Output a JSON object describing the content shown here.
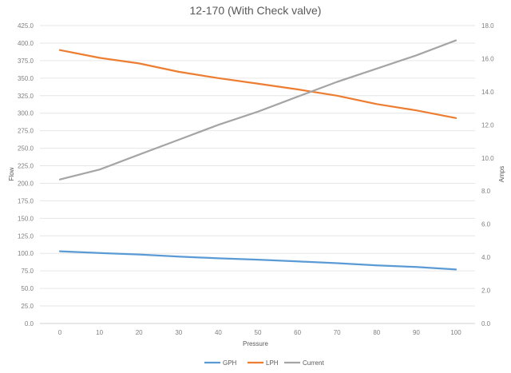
{
  "chart_data": {
    "type": "line",
    "title": "12-170 (With Check valve)",
    "xlabel": "Pressure",
    "ylabel": "Flow",
    "y2label": "Amps",
    "x": [
      0,
      10,
      20,
      30,
      40,
      50,
      60,
      70,
      80,
      90,
      100
    ],
    "x_ticks": [
      "0",
      "10",
      "20",
      "30",
      "40",
      "50",
      "60",
      "70",
      "80",
      "90",
      "100"
    ],
    "ylim": [
      0,
      425
    ],
    "y_ticks": [
      "0.0",
      "25.0",
      "50.0",
      "75.0",
      "100.0",
      "125.0",
      "150.0",
      "175.0",
      "200.0",
      "225.0",
      "250.0",
      "275.0",
      "300.0",
      "325.0",
      "350.0",
      "375.0",
      "400.0",
      "425.0"
    ],
    "y2lim": [
      0,
      18
    ],
    "y2_ticks": [
      "0.0",
      "2.0",
      "4.0",
      "6.0",
      "8.0",
      "10.0",
      "12.0",
      "14.0",
      "16.0",
      "18.0"
    ],
    "grid": true,
    "legend_position": "bottom",
    "series": [
      {
        "name": "GPH",
        "axis": "left",
        "color": "#5b9bd5",
        "values": [
          103,
          100.5,
          98.5,
          95.5,
          93,
          91,
          88.5,
          86,
          83,
          80.5,
          77
        ]
      },
      {
        "name": "LPH",
        "axis": "left",
        "color": "#ed7d31",
        "values": [
          390,
          379,
          371,
          359,
          350,
          342,
          334,
          325,
          313,
          304,
          293
        ]
      },
      {
        "name": "Current",
        "axis": "right",
        "color": "#a5a5a5",
        "values": [
          8.7,
          9.3,
          10.2,
          11.1,
          12.0,
          12.8,
          13.7,
          14.6,
          15.4,
          16.2,
          17.1
        ]
      }
    ]
  }
}
